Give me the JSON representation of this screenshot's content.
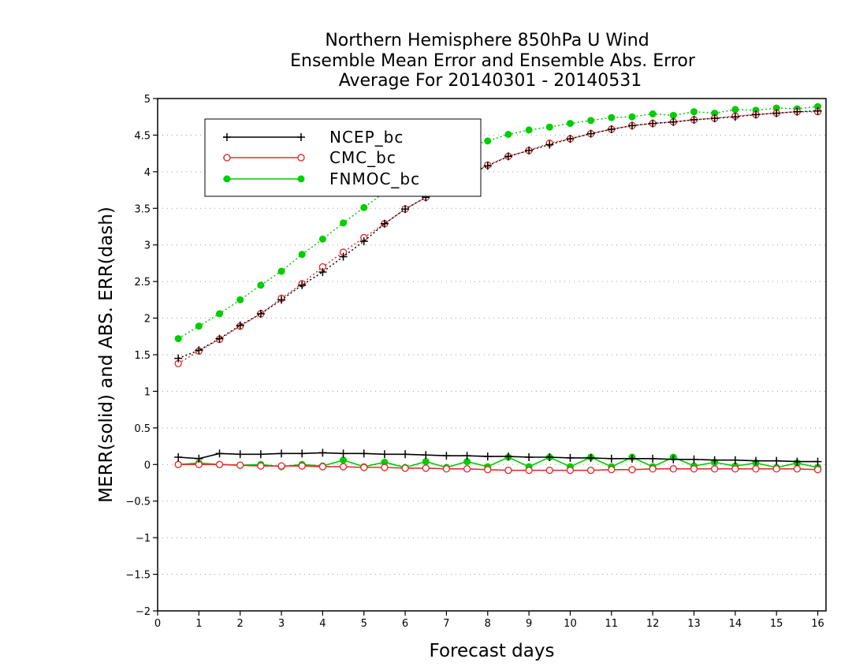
{
  "chart_data": {
    "type": "line",
    "title": [
      "Northern Hemisphere 850hPa U Wind",
      "Ensemble Mean Error and Ensemble Abs. Error",
      "Average For 20140301 - 20140531"
    ],
    "xlabel": "Forecast days",
    "ylabel": "MERR(solid) and ABS. ERR(dash)",
    "xlim": [
      0,
      16.2
    ],
    "ylim": [
      -2,
      5
    ],
    "xticks": [
      0,
      1,
      2,
      3,
      4,
      5,
      6,
      7,
      8,
      9,
      10,
      11,
      12,
      13,
      14,
      15,
      16
    ],
    "yticks": [
      -2,
      -1.5,
      -1,
      -0.5,
      0,
      0.5,
      1,
      1.5,
      2,
      2.5,
      3,
      3.5,
      4,
      4.5,
      5
    ],
    "grid": "horizontal-dotted",
    "legend_position": "top-left",
    "x": [
      0.5,
      1,
      1.5,
      2,
      2.5,
      3,
      3.5,
      4,
      4.5,
      5,
      5.5,
      6,
      6.5,
      7,
      7.5,
      8,
      8.5,
      9,
      9.5,
      10,
      10.5,
      11,
      11.5,
      12,
      12.5,
      13,
      13.5,
      14,
      14.5,
      15,
      15.5,
      16
    ],
    "series": [
      {
        "name": "NCEP_bc",
        "color": "#000000",
        "marker": "plus",
        "merr": [
          0.1,
          0.08,
          0.15,
          0.14,
          0.14,
          0.15,
          0.15,
          0.16,
          0.15,
          0.15,
          0.14,
          0.14,
          0.13,
          0.12,
          0.12,
          0.11,
          0.11,
          0.1,
          0.1,
          0.09,
          0.09,
          0.08,
          0.08,
          0.08,
          0.07,
          0.07,
          0.06,
          0.06,
          0.05,
          0.05,
          0.04,
          0.04
        ],
        "abs_err": [
          1.45,
          1.56,
          1.72,
          1.9,
          2.06,
          2.25,
          2.45,
          2.63,
          2.84,
          3.05,
          3.29,
          3.49,
          3.65,
          3.81,
          3.95,
          4.08,
          4.21,
          4.29,
          4.37,
          4.45,
          4.52,
          4.58,
          4.63,
          4.66,
          4.68,
          4.71,
          4.73,
          4.75,
          4.78,
          4.8,
          4.82,
          4.83
        ]
      },
      {
        "name": "CMC_bc",
        "color": "#e03030",
        "marker": "open-circle",
        "merr": [
          0.0,
          0.0,
          0.0,
          -0.01,
          -0.02,
          -0.02,
          -0.02,
          -0.03,
          -0.03,
          -0.04,
          -0.04,
          -0.05,
          -0.05,
          -0.06,
          -0.06,
          -0.07,
          -0.08,
          -0.08,
          -0.08,
          -0.08,
          -0.08,
          -0.07,
          -0.07,
          -0.06,
          -0.06,
          -0.06,
          -0.06,
          -0.06,
          -0.06,
          -0.06,
          -0.06,
          -0.07
        ],
        "abs_err": [
          1.38,
          1.55,
          1.71,
          1.89,
          2.06,
          2.27,
          2.47,
          2.7,
          2.9,
          3.1,
          3.29,
          3.49,
          3.65,
          3.81,
          3.95,
          4.09,
          4.21,
          4.29,
          4.39,
          4.45,
          4.52,
          4.58,
          4.63,
          4.66,
          4.68,
          4.71,
          4.73,
          4.76,
          4.78,
          4.8,
          4.82,
          4.82
        ]
      },
      {
        "name": "FNMOC_bc",
        "color": "#00cc00",
        "marker": "filled-circle",
        "merr": [
          0.0,
          0.02,
          0.0,
          -0.01,
          0.0,
          -0.03,
          0.0,
          -0.02,
          0.06,
          -0.03,
          0.03,
          -0.04,
          0.04,
          -0.04,
          0.04,
          -0.03,
          0.1,
          -0.03,
          0.1,
          -0.03,
          0.1,
          -0.03,
          0.1,
          -0.03,
          0.1,
          -0.02,
          0.03,
          -0.02,
          0.02,
          -0.04,
          0.02,
          -0.04
        ],
        "abs_err": [
          1.72,
          1.89,
          2.06,
          2.25,
          2.45,
          2.64,
          2.87,
          3.08,
          3.3,
          3.51,
          3.72,
          3.91,
          4.08,
          4.22,
          4.34,
          4.42,
          4.51,
          4.57,
          4.61,
          4.66,
          4.7,
          4.74,
          4.75,
          4.79,
          4.77,
          4.82,
          4.8,
          4.85,
          4.84,
          4.87,
          4.86,
          4.89
        ]
      }
    ]
  }
}
